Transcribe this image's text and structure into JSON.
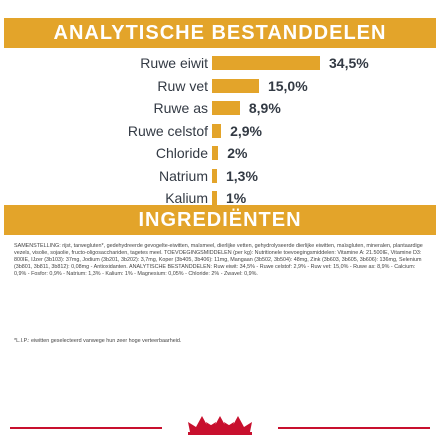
{
  "analysis": {
    "title": "ANALYTISCHE BESTANDDELEN",
    "accent_color": "#e3a42a",
    "nutrients": [
      {
        "label": "Ruwe eiwit",
        "value": "34,5%",
        "percent": 34.5
      },
      {
        "label": "Ruw vet",
        "value": "15,0%",
        "percent": 15.0
      },
      {
        "label": "Ruwe as",
        "value": "8,9%",
        "percent": 8.9
      },
      {
        "label": "Ruwe celstof",
        "value": "2,9%",
        "percent": 2.9
      },
      {
        "label": "Chloride",
        "value": "2%",
        "percent": 2
      },
      {
        "label": "Natrium",
        "value": "1,3%",
        "percent": 1.3
      },
      {
        "label": "Kalium",
        "value": "1%",
        "percent": 1
      }
    ]
  },
  "ingredients": {
    "title": "INGREDIËNTEN",
    "text": "SAMENSTELLING: rijst, tarwegluten*, gedehydreerde gevogelte-eiwitten, maïsmeel, dierlijke vetten, gehydrolyseerde dierlijke eiwitten, maïsgluten, mineralen, plantaardige vezels, visolie, sojaolie, fructo-oligosacchariden, tagetes meel. TOEVOEGINGSMIDDELEN (per kg): Nutritionele toevoegingsmiddelen: Vitamine A: 21.500IE, Vitamine D3: 800IE, IJzer (3b103): 37mg, Jodium (3b201, 3b202): 3,7mg, Koper (3b405, 3b406): 11mg, Mangaan (3b502, 3b504): 48mg, Zink (3b603, 3b605, 3b606): 136mg, Selenium (3b801, 3b811, 3b812): 0,08mg - Antioxidanten. ANALYTISCHE BESTANDDELEN: Ruw eiwit: 34,5% - Ruwe celstof: 2,9% - Ruw vet: 15,0% - Ruwe as: 8,9% - Calcium: 0,9% - Fosfor: 0,9% - Natrium: 1,3% - Kalium: 1% - Magnesium: 0,05% - Chloride: 2% - Zwavel: 0,9%.",
    "footnote": "*L.I.P.: eiwitten geselecteerd vanwege hun zeer hoge verteerbaarheid."
  },
  "footer": {
    "brand_color": "#c8102e",
    "logo_icon": "royal-canin-crown-icon"
  }
}
